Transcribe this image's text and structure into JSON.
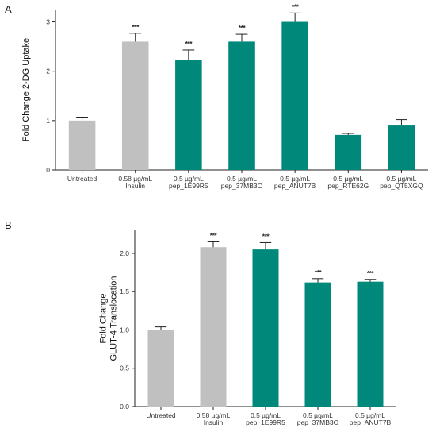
{
  "panel_labels": [
    "A",
    "B"
  ],
  "chart_data": [
    {
      "type": "bar",
      "panel": "A",
      "ylabel": "Fold Change  2-DG Uptake",
      "ylim": [
        0,
        3.25
      ],
      "yticks": [
        "0",
        "1",
        "2",
        "3"
      ],
      "ytick_values": [
        0,
        1,
        2,
        3
      ],
      "categories": [
        [
          "Untreated"
        ],
        [
          "0.58 µg/mL",
          "Insulin"
        ],
        [
          "0.5 µg/mL",
          "pep_1E99R5"
        ],
        [
          "0.5 µg/mL",
          "pep_37MB3O"
        ],
        [
          "0.5 µg/mL",
          "pep_ANUT7B"
        ],
        [
          "0.5 µg/mL",
          "pep_RTE62G"
        ],
        [
          "0.5 µg/mL",
          "pep_QT5XGQ"
        ]
      ],
      "values": [
        1.0,
        2.6,
        2.23,
        2.6,
        3.0,
        0.71,
        0.9
      ],
      "errors": [
        0.07,
        0.17,
        0.2,
        0.15,
        0.18,
        0.03,
        0.12
      ],
      "significance": [
        "",
        "***",
        "***",
        "***",
        "***",
        "",
        ""
      ],
      "colors": [
        "#c0c0c0",
        "#c0c0c0",
        "#00897b",
        "#00897b",
        "#00897b",
        "#00897b",
        "#00897b"
      ],
      "grid": false
    },
    {
      "type": "bar",
      "panel": "B",
      "ylabel_lines": [
        "Fold Change",
        "GLUT-4 Translocation"
      ],
      "ylim": [
        0,
        2.3
      ],
      "yticks": [
        "0.0",
        "0.5",
        "1.0",
        "1.5",
        "2.0"
      ],
      "ytick_values": [
        0,
        0.5,
        1.0,
        1.5,
        2.0
      ],
      "categories": [
        [
          "Untreated"
        ],
        [
          "0.58 µg/mL",
          "Insulin"
        ],
        [
          "0.5 µg/mL",
          "pep_1E99R5"
        ],
        [
          "0.5 µg/mL",
          "pep_37MB3O"
        ],
        [
          "0.5 µg/mL",
          "pep_ANUT7B"
        ]
      ],
      "values": [
        1.0,
        2.08,
        2.05,
        1.62,
        1.63
      ],
      "errors": [
        0.04,
        0.07,
        0.09,
        0.05,
        0.03
      ],
      "significance": [
        "",
        "***",
        "***",
        "***",
        "***"
      ],
      "colors": [
        "#c0c0c0",
        "#c0c0c0",
        "#00897b",
        "#00897b",
        "#00897b"
      ],
      "grid": false
    }
  ]
}
